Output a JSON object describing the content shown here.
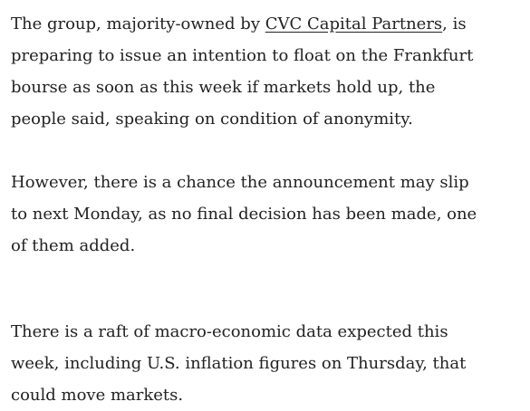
{
  "article": {
    "paragraphs": [
      {
        "lines": [
          {
            "before": "The group, majority-owned by ",
            "link": "CVC Capital Partners",
            "after": ", is"
          },
          "preparing to issue an intention to float on the Frankfurt",
          "bourse as soon as this week if markets hold up, the",
          "people said, speaking on condition of anonymity."
        ]
      },
      {
        "lines": [
          "However, there is a chance the announcement may slip",
          "to next Monday, as no final decision has been made, one",
          "of them added."
        ]
      },
      {
        "lines": [
          "There is a raft of macro-economic data expected this",
          "week, including U.S. inflation figures on Thursday, that",
          "could move markets."
        ]
      }
    ]
  }
}
